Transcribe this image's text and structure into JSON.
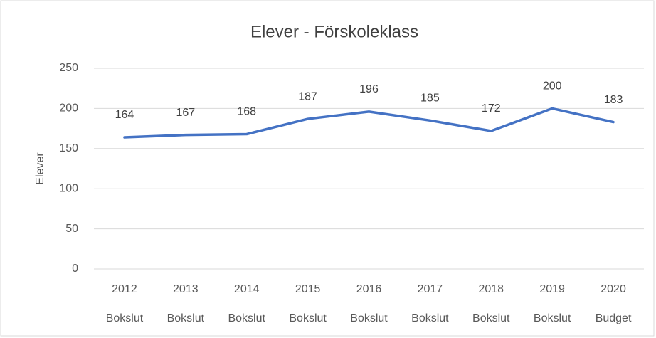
{
  "chart_data": {
    "type": "line",
    "title": "Elever - Förskoleklass",
    "y_label": "Elever",
    "categories": [
      "2012",
      "2013",
      "2014",
      "2015",
      "2016",
      "2017",
      "2018",
      "2019",
      "2020"
    ],
    "subcategories": [
      "Bokslut",
      "Bokslut",
      "Bokslut",
      "Bokslut",
      "Bokslut",
      "Bokslut",
      "Bokslut",
      "Bokslut",
      "Budget"
    ],
    "series": [
      {
        "name": "Elever",
        "color": "#4472c4",
        "values": [
          164,
          167,
          168,
          187,
          196,
          185,
          172,
          200,
          183
        ]
      }
    ],
    "ylim": [
      0,
      250
    ],
    "yticks": [
      0,
      50,
      100,
      150,
      200,
      250
    ],
    "grid": true,
    "data_labels": true
  }
}
